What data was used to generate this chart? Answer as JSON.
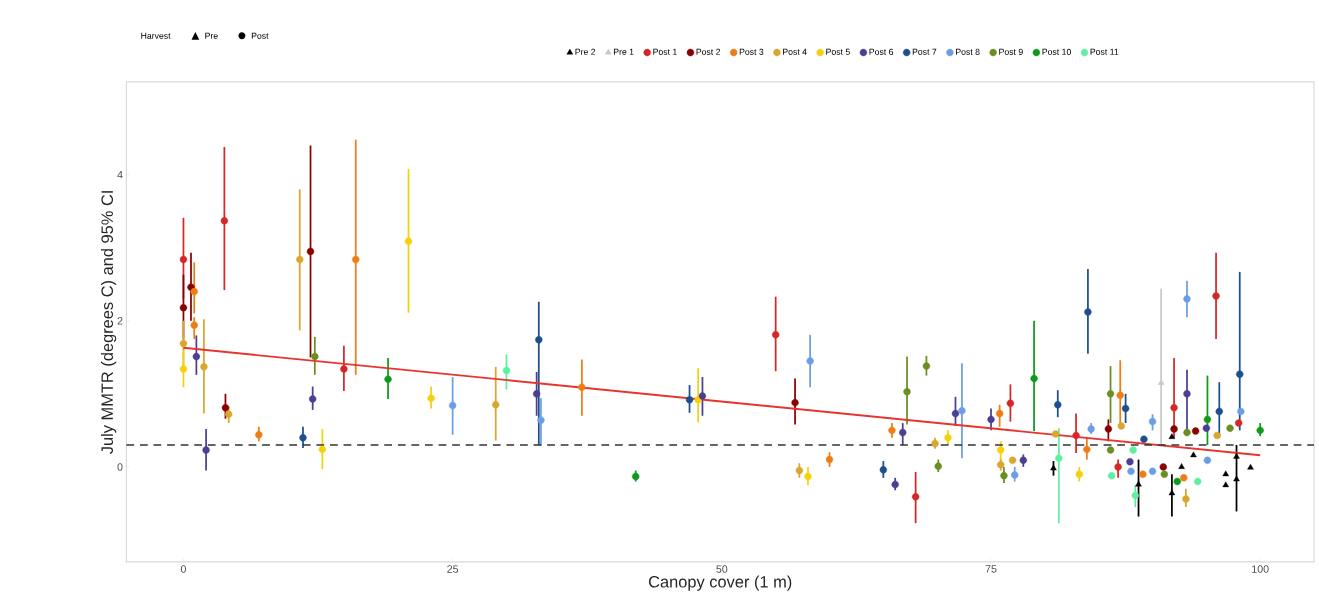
{
  "chart_data": {
    "type": "scatter",
    "xlabel": "Canopy cover (1 m)",
    "ylabel": "July MMTR (degrees C) and 95% CI",
    "legend_title": "Harvest",
    "annotations": [
      "Pre",
      "Post"
    ],
    "legend": "top",
    "grid": false,
    "xlim": [
      -5.3,
      105
    ],
    "ylim": [
      -1.3,
      5.27
    ],
    "xticks": [
      0,
      25,
      50,
      75,
      100
    ],
    "yticks": [
      0,
      2,
      4
    ],
    "ref_lines": [
      {
        "axis": "y",
        "value": 0.3,
        "color": "#333333",
        "line_style": "dashed"
      }
    ],
    "series": [
      {
        "name": "Pre 2",
        "color": "#000000",
        "marker": "triangle",
        "x": [
          80.8,
          88.7,
          91.8,
          91.8,
          93.8,
          92.7,
          96.8,
          96.8,
          97.8,
          97.8,
          99.1
        ],
        "values": [
          -0.02,
          -0.24,
          0.41,
          -0.36,
          0.16,
          0.0,
          -0.1,
          -0.25,
          -0.17,
          0.14,
          -0.01
        ],
        "errors": [
          [
            -0.12,
            0.08
          ],
          [
            -0.68,
            0.1
          ],
          null,
          [
            -0.68,
            -0.1
          ],
          null,
          null,
          null,
          null,
          [
            -0.61,
            0.3
          ],
          null,
          null
        ]
      },
      {
        "name": "Pre 1",
        "color": "#c8c8c8",
        "marker": "triangle",
        "x": [
          90.8
        ],
        "values": [
          1.15
        ],
        "errors": [
          [
            0.3,
            2.44
          ]
        ]
      },
      {
        "name": "Post 1",
        "color": "#d62728",
        "marker": "circle",
        "x": [
          0,
          3.8,
          14.9,
          55,
          68,
          76.8,
          82.9,
          86.8,
          92,
          95.9,
          98
        ],
        "values": [
          2.84,
          3.37,
          1.34,
          1.81,
          -0.41,
          0.87,
          0.43,
          0.0,
          0.81,
          2.34,
          0.6
        ],
        "errors": [
          [
            2.3,
            3.41
          ],
          [
            2.42,
            4.38
          ],
          [
            1.04,
            1.66
          ],
          [
            1.31,
            2.33
          ],
          [
            -0.77,
            -0.07
          ],
          [
            0.62,
            1.13
          ],
          [
            0.19,
            0.73
          ],
          [
            -0.15,
            0.1
          ],
          [
            0.4,
            1.49
          ],
          [
            1.75,
            2.93
          ],
          null
        ]
      },
      {
        "name": "Post 2",
        "color": "#8b0000",
        "marker": "circle",
        "x": [
          0,
          0.7,
          3.9,
          11.8,
          56.8,
          85.9,
          91,
          92,
          94
        ],
        "values": [
          2.18,
          2.46,
          0.81,
          2.95,
          0.88,
          0.52,
          0.0,
          0.52,
          0.49
        ],
        "errors": [
          [
            1.75,
            2.63
          ],
          [
            2.0,
            2.93
          ],
          [
            0.66,
            1.0
          ],
          [
            1.5,
            4.4
          ],
          [
            0.58,
            1.21
          ],
          [
            0.35,
            0.65
          ],
          null,
          null,
          null
        ]
      },
      {
        "name": "Post 3",
        "color": "#ef7d16",
        "marker": "circle",
        "x": [
          1,
          1,
          7,
          16,
          37,
          60,
          65.8,
          75.8,
          83.9,
          87,
          89.1,
          92.9
        ],
        "values": [
          2.4,
          1.94,
          0.44,
          2.84,
          1.09,
          0.1,
          0.5,
          0.73,
          0.24,
          0.98,
          -0.1,
          -0.15
        ],
        "errors": [
          [
            2.1,
            2.8
          ],
          [
            1.75,
            2.05
          ],
          [
            0.35,
            0.55
          ],
          [
            1.26,
            4.48
          ],
          [
            0.7,
            1.47
          ],
          [
            0.0,
            0.2
          ],
          [
            0.4,
            0.6
          ],
          [
            0.55,
            0.85
          ],
          [
            0.1,
            0.4
          ],
          [
            0.6,
            1.46
          ],
          null,
          null
        ]
      },
      {
        "name": "Post 4",
        "color": "#d9a62e",
        "marker": "circle",
        "x": [
          0,
          1.9,
          4.2,
          10.8,
          29,
          57.2,
          69.8,
          75.9,
          77,
          81,
          87.1,
          93.1,
          96
        ],
        "values": [
          1.69,
          1.37,
          0.72,
          2.84,
          0.85,
          -0.05,
          0.32,
          0.03,
          0.09,
          0.45,
          0.56,
          -0.44,
          0.43
        ],
        "errors": [
          [
            1.3,
            2.0
          ],
          [
            0.73,
            2.02
          ],
          [
            0.6,
            0.83
          ],
          [
            1.87,
            3.8
          ],
          [
            0.36,
            1.37
          ],
          [
            -0.15,
            0.05
          ],
          [
            0.25,
            0.4
          ],
          [
            -0.05,
            0.12
          ],
          null,
          null,
          null,
          [
            -0.55,
            -0.3
          ],
          null
        ]
      },
      {
        "name": "Post 5",
        "color": "#f5d10c",
        "marker": "circle",
        "x": [
          0,
          12.9,
          20.9,
          23,
          47.8,
          58,
          71,
          75.9,
          83.2
        ],
        "values": [
          1.34,
          0.24,
          3.09,
          0.94,
          0.92,
          -0.13,
          0.4,
          0.23,
          -0.1
        ],
        "errors": [
          [
            1.09,
            1.6
          ],
          [
            -0.03,
            0.52
          ],
          [
            2.11,
            4.08
          ],
          [
            0.8,
            1.1
          ],
          [
            0.61,
            1.35
          ],
          [
            -0.25,
            0.0
          ],
          [
            0.3,
            0.5
          ],
          [
            0.1,
            0.35
          ],
          [
            -0.2,
            0.0
          ]
        ]
      },
      {
        "name": "Post 6",
        "color": "#4b3f92",
        "marker": "circle",
        "x": [
          1.2,
          2.1,
          12,
          32.8,
          48.2,
          66.1,
          66.8,
          71.7,
          75,
          78,
          87.9,
          93.2,
          95
        ],
        "values": [
          1.51,
          0.23,
          0.93,
          1.0,
          0.97,
          -0.24,
          0.47,
          0.73,
          0.65,
          0.09,
          0.07,
          1.0,
          0.53
        ],
        "errors": [
          [
            1.26,
            1.8
          ],
          [
            -0.05,
            0.52
          ],
          [
            0.78,
            1.1
          ],
          [
            0.7,
            1.3
          ],
          [
            0.7,
            1.23
          ],
          [
            -0.32,
            -0.15
          ],
          [
            0.3,
            0.6
          ],
          [
            0.56,
            0.96
          ],
          [
            0.5,
            0.8
          ],
          [
            0.0,
            0.17
          ],
          null,
          [
            0.5,
            1.33
          ],
          null
        ]
      },
      {
        "name": "Post 7",
        "color": "#1c4f8c",
        "marker": "circle",
        "x": [
          11.1,
          33,
          47,
          65,
          81.2,
          84,
          87.5,
          89.2,
          96.2,
          98.1
        ],
        "values": [
          0.4,
          1.74,
          0.92,
          -0.04,
          0.85,
          2.12,
          0.8,
          0.38,
          0.76,
          1.27
        ],
        "errors": [
          [
            0.26,
            0.55
          ],
          [
            0.3,
            2.26
          ],
          [
            0.74,
            1.12
          ],
          [
            -0.15,
            0.08
          ],
          [
            0.68,
            1.05
          ],
          [
            1.55,
            2.71
          ],
          [
            0.6,
            1.0
          ],
          null,
          [
            0.4,
            1.16
          ],
          [
            0.5,
            2.67
          ]
        ]
      },
      {
        "name": "Post 8",
        "color": "#6c9ee8",
        "marker": "circle",
        "x": [
          25,
          33.2,
          58.2,
          72.3,
          77.2,
          84.3,
          88,
          90,
          90,
          93.2,
          95.1,
          98.2
        ],
        "values": [
          0.84,
          0.64,
          1.45,
          0.77,
          -0.11,
          0.52,
          -0.06,
          0.62,
          -0.06,
          2.3,
          0.09,
          0.76
        ],
        "errors": [
          [
            0.44,
            1.23
          ],
          [
            0.29,
            0.94
          ],
          [
            1.09,
            1.81
          ],
          [
            0.12,
            1.42
          ],
          [
            -0.2,
            0.0
          ],
          [
            0.45,
            0.6
          ],
          null,
          [
            0.5,
            0.72
          ],
          null,
          [
            2.05,
            2.55
          ],
          null,
          null
        ]
      },
      {
        "name": "Post 9",
        "color": "#6b8e23",
        "marker": "circle",
        "x": [
          12.2,
          67.2,
          69,
          70.1,
          76.2,
          86.1,
          86.1,
          91.1,
          93.2,
          97.2
        ],
        "values": [
          1.51,
          1.03,
          1.38,
          0.01,
          -0.12,
          1.0,
          0.23,
          -0.1,
          0.47,
          0.53
        ],
        "errors": [
          [
            1.26,
            1.78
          ],
          [
            0.58,
            1.51
          ],
          [
            1.25,
            1.52
          ],
          [
            -0.07,
            0.1
          ],
          [
            -0.22,
            0.0
          ],
          [
            0.6,
            1.38
          ],
          null,
          null,
          null,
          null
        ]
      },
      {
        "name": "Post 10",
        "color": "#0f9a1a",
        "marker": "circle",
        "x": [
          19,
          42,
          79,
          92.3,
          95.1,
          100
        ],
        "values": [
          1.2,
          -0.13,
          1.21,
          -0.2,
          0.65,
          0.5
        ],
        "errors": [
          [
            0.93,
            1.49
          ],
          [
            -0.2,
            -0.05
          ],
          [
            0.49,
            2.0
          ],
          null,
          [
            0.3,
            1.25
          ],
          [
            0.42,
            0.6
          ]
        ]
      },
      {
        "name": "Post 11",
        "color": "#5ef0a0",
        "marker": "circle",
        "x": [
          30,
          81.3,
          86.2,
          88.2,
          88.4,
          94.2
        ],
        "values": [
          1.32,
          0.12,
          -0.12,
          0.23,
          -0.39,
          -0.2
        ],
        "errors": [
          [
            1.06,
            1.54
          ],
          [
            -0.77,
            0.53
          ],
          null,
          null,
          [
            -0.55,
            -0.25
          ],
          null
        ]
      },
      {
        "type": "line",
        "color": "#e8342f",
        "x": [
          0,
          100
        ],
        "values": [
          1.63,
          0.16
        ]
      }
    ]
  }
}
